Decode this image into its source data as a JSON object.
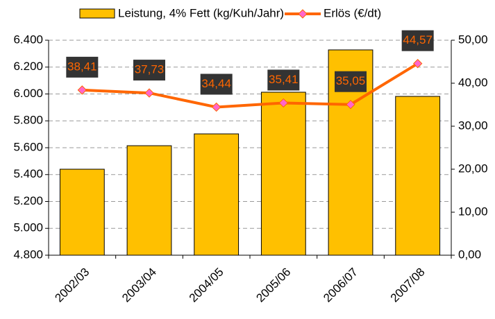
{
  "chart_data": {
    "type": "bar",
    "categories": [
      "2002/03",
      "2003/04",
      "2004/05",
      "2005/06",
      "2006/07",
      "2007/08"
    ],
    "series": [
      {
        "name": "Leistung, 4% Fett (kg/Kuh/Jahr)",
        "type": "bar",
        "color": "#ffc000",
        "values": [
          5440,
          5615,
          5703,
          6013,
          6328,
          5982
        ]
      },
      {
        "name": "Erlös (€/dt)",
        "type": "line",
        "axis": "y2",
        "color": "#ff6600",
        "marker_color": "#ff66cc",
        "values": [
          38.41,
          37.73,
          34.44,
          35.41,
          35.05,
          44.57
        ],
        "value_labels": [
          "38,41",
          "37,73",
          "34,44",
          "35,41",
          "35,05",
          "44,57"
        ]
      }
    ],
    "ylim": [
      4800,
      6400
    ],
    "yticks": [
      {
        "value": 4800,
        "label": "4.800"
      },
      {
        "value": 5000,
        "label": "5.000"
      },
      {
        "value": 5200,
        "label": "5.200"
      },
      {
        "value": 5400,
        "label": "5.400"
      },
      {
        "value": 5600,
        "label": "5.600"
      },
      {
        "value": 5800,
        "label": "5.800"
      },
      {
        "value": 6000,
        "label": "6.000"
      },
      {
        "value": 6200,
        "label": "6.200"
      },
      {
        "value": 6400,
        "label": "6.400"
      }
    ],
    "y2lim": [
      0,
      50
    ],
    "y2ticks": [
      {
        "value": 0,
        "label": "0,00"
      },
      {
        "value": 10,
        "label": "10,00"
      },
      {
        "value": 20,
        "label": "20,00"
      },
      {
        "value": 30,
        "label": "30,00"
      },
      {
        "value": 40,
        "label": "40,00"
      },
      {
        "value": 50,
        "label": "50,00"
      }
    ],
    "grid": true,
    "legend": "top"
  }
}
